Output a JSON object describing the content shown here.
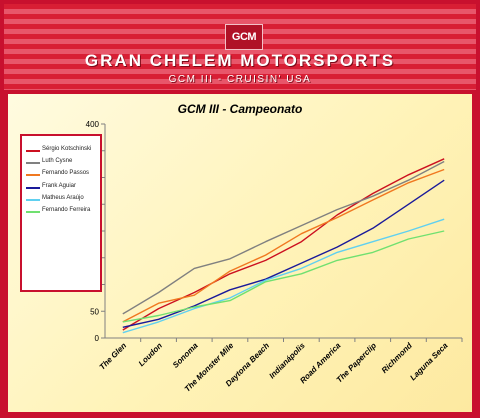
{
  "header": {
    "logo_text": "GCM",
    "brand": "GRAN CHELEM MOTORSPORTS",
    "subtitle": "GCM III - CRUISIN' USA"
  },
  "colors": {
    "frame": "#c8102e",
    "axis": "#808080"
  },
  "chart_data": {
    "type": "line",
    "title": "GCM III - Campeonato",
    "xlabel": "",
    "ylabel": "",
    "ylim": [
      0,
      400
    ],
    "yticks": [
      0,
      50,
      100,
      150,
      200,
      250,
      300,
      350,
      400
    ],
    "grid": false,
    "legend_position": "left",
    "categories": [
      "The Glen",
      "Loudon",
      "Sonoma",
      "The Monster Mile",
      "Daytona Beach",
      "Indianápolis",
      "Road America",
      "The Paperclip",
      "Richmond",
      "Laguna Seca"
    ],
    "series": [
      {
        "name": "Sérgio Kotschinski",
        "color": "#cc1020",
        "values": [
          15,
          55,
          85,
          120,
          145,
          180,
          230,
          270,
          305,
          335
        ]
      },
      {
        "name": "Luth Cysne",
        "color": "#808080",
        "values": [
          45,
          85,
          130,
          148,
          180,
          210,
          240,
          265,
          295,
          330
        ]
      },
      {
        "name": "Fernando Passos",
        "color": "#f07820",
        "values": [
          30,
          65,
          80,
          125,
          155,
          195,
          225,
          258,
          290,
          315
        ]
      },
      {
        "name": "Frank Aguiar",
        "color": "#1a1a9a",
        "values": [
          20,
          35,
          60,
          90,
          110,
          140,
          170,
          205,
          250,
          295
        ]
      },
      {
        "name": "Matheus Araújo",
        "color": "#60d0f0",
        "values": [
          10,
          30,
          55,
          75,
          108,
          130,
          160,
          180,
          200,
          222
        ]
      },
      {
        "name": "Fernando Ferreira",
        "color": "#70e070",
        "values": [
          30,
          42,
          58,
          70,
          105,
          120,
          145,
          160,
          185,
          200
        ]
      }
    ]
  }
}
